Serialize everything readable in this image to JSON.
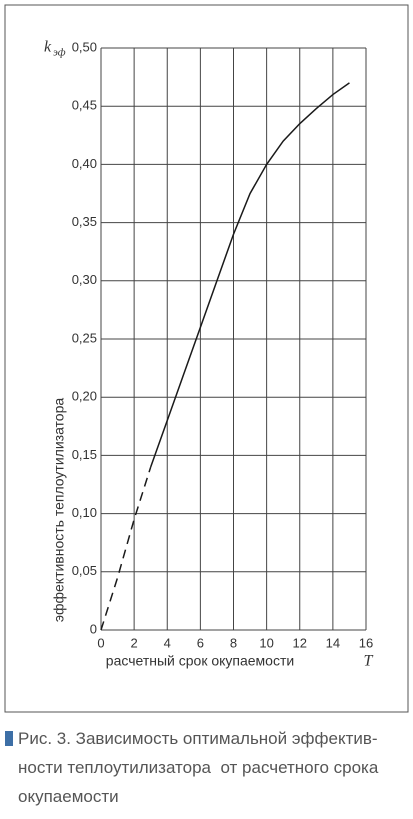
{
  "chart_data": {
    "type": "line",
    "ylabel_symbol": "k",
    "ylabel_subscript": "эф",
    "xlabel_symbol": "T",
    "ylabel": "эффективность теплоутилизатора",
    "xlabel": "расчетный срок окупаемости",
    "series": [
      {
        "color": "#1a1a1a",
        "style": "dashed",
        "x": [
          0,
          1,
          2,
          3
        ],
        "values": [
          0,
          0.045,
          0.095,
          0.14
        ]
      },
      {
        "color": "#1a1a1a",
        "style": "solid",
        "x": [
          3,
          4,
          5,
          6,
          7,
          8,
          9,
          10,
          11,
          12,
          13,
          14,
          15
        ],
        "values": [
          0.14,
          0.18,
          0.22,
          0.26,
          0.3,
          0.34,
          0.375,
          0.4,
          0.42,
          0.435,
          0.448,
          0.46,
          0.47
        ]
      }
    ],
    "xlim": [
      0,
      16
    ],
    "xticks": [
      0,
      2,
      4,
      6,
      8,
      10,
      12,
      14,
      16
    ],
    "ylim": [
      0,
      0.5
    ],
    "yticks": [
      0,
      {
        "value": 0.05,
        "label": "0,05"
      },
      {
        "value": 0.1,
        "label": "0,10"
      },
      {
        "value": 0.15,
        "label": "0,15"
      },
      {
        "value": 0.2,
        "label": "0,20"
      },
      {
        "value": 0.25,
        "label": "0,25"
      },
      {
        "value": 0.3,
        "label": "0,30"
      },
      {
        "value": 0.35,
        "label": "0,35"
      },
      {
        "value": 0.4,
        "label": "0,40"
      },
      {
        "value": 0.45,
        "label": "0,45"
      },
      {
        "value": 0.5,
        "label": "0,50"
      }
    ],
    "grid": true
  },
  "caption": {
    "lines": [
      "Рис. 3. Зависимость оптимальной эффектив-",
      "ности теплоутилизатора  от расчетного срока",
      "окупаемости"
    ],
    "marker_color": "#3d6fa6"
  }
}
